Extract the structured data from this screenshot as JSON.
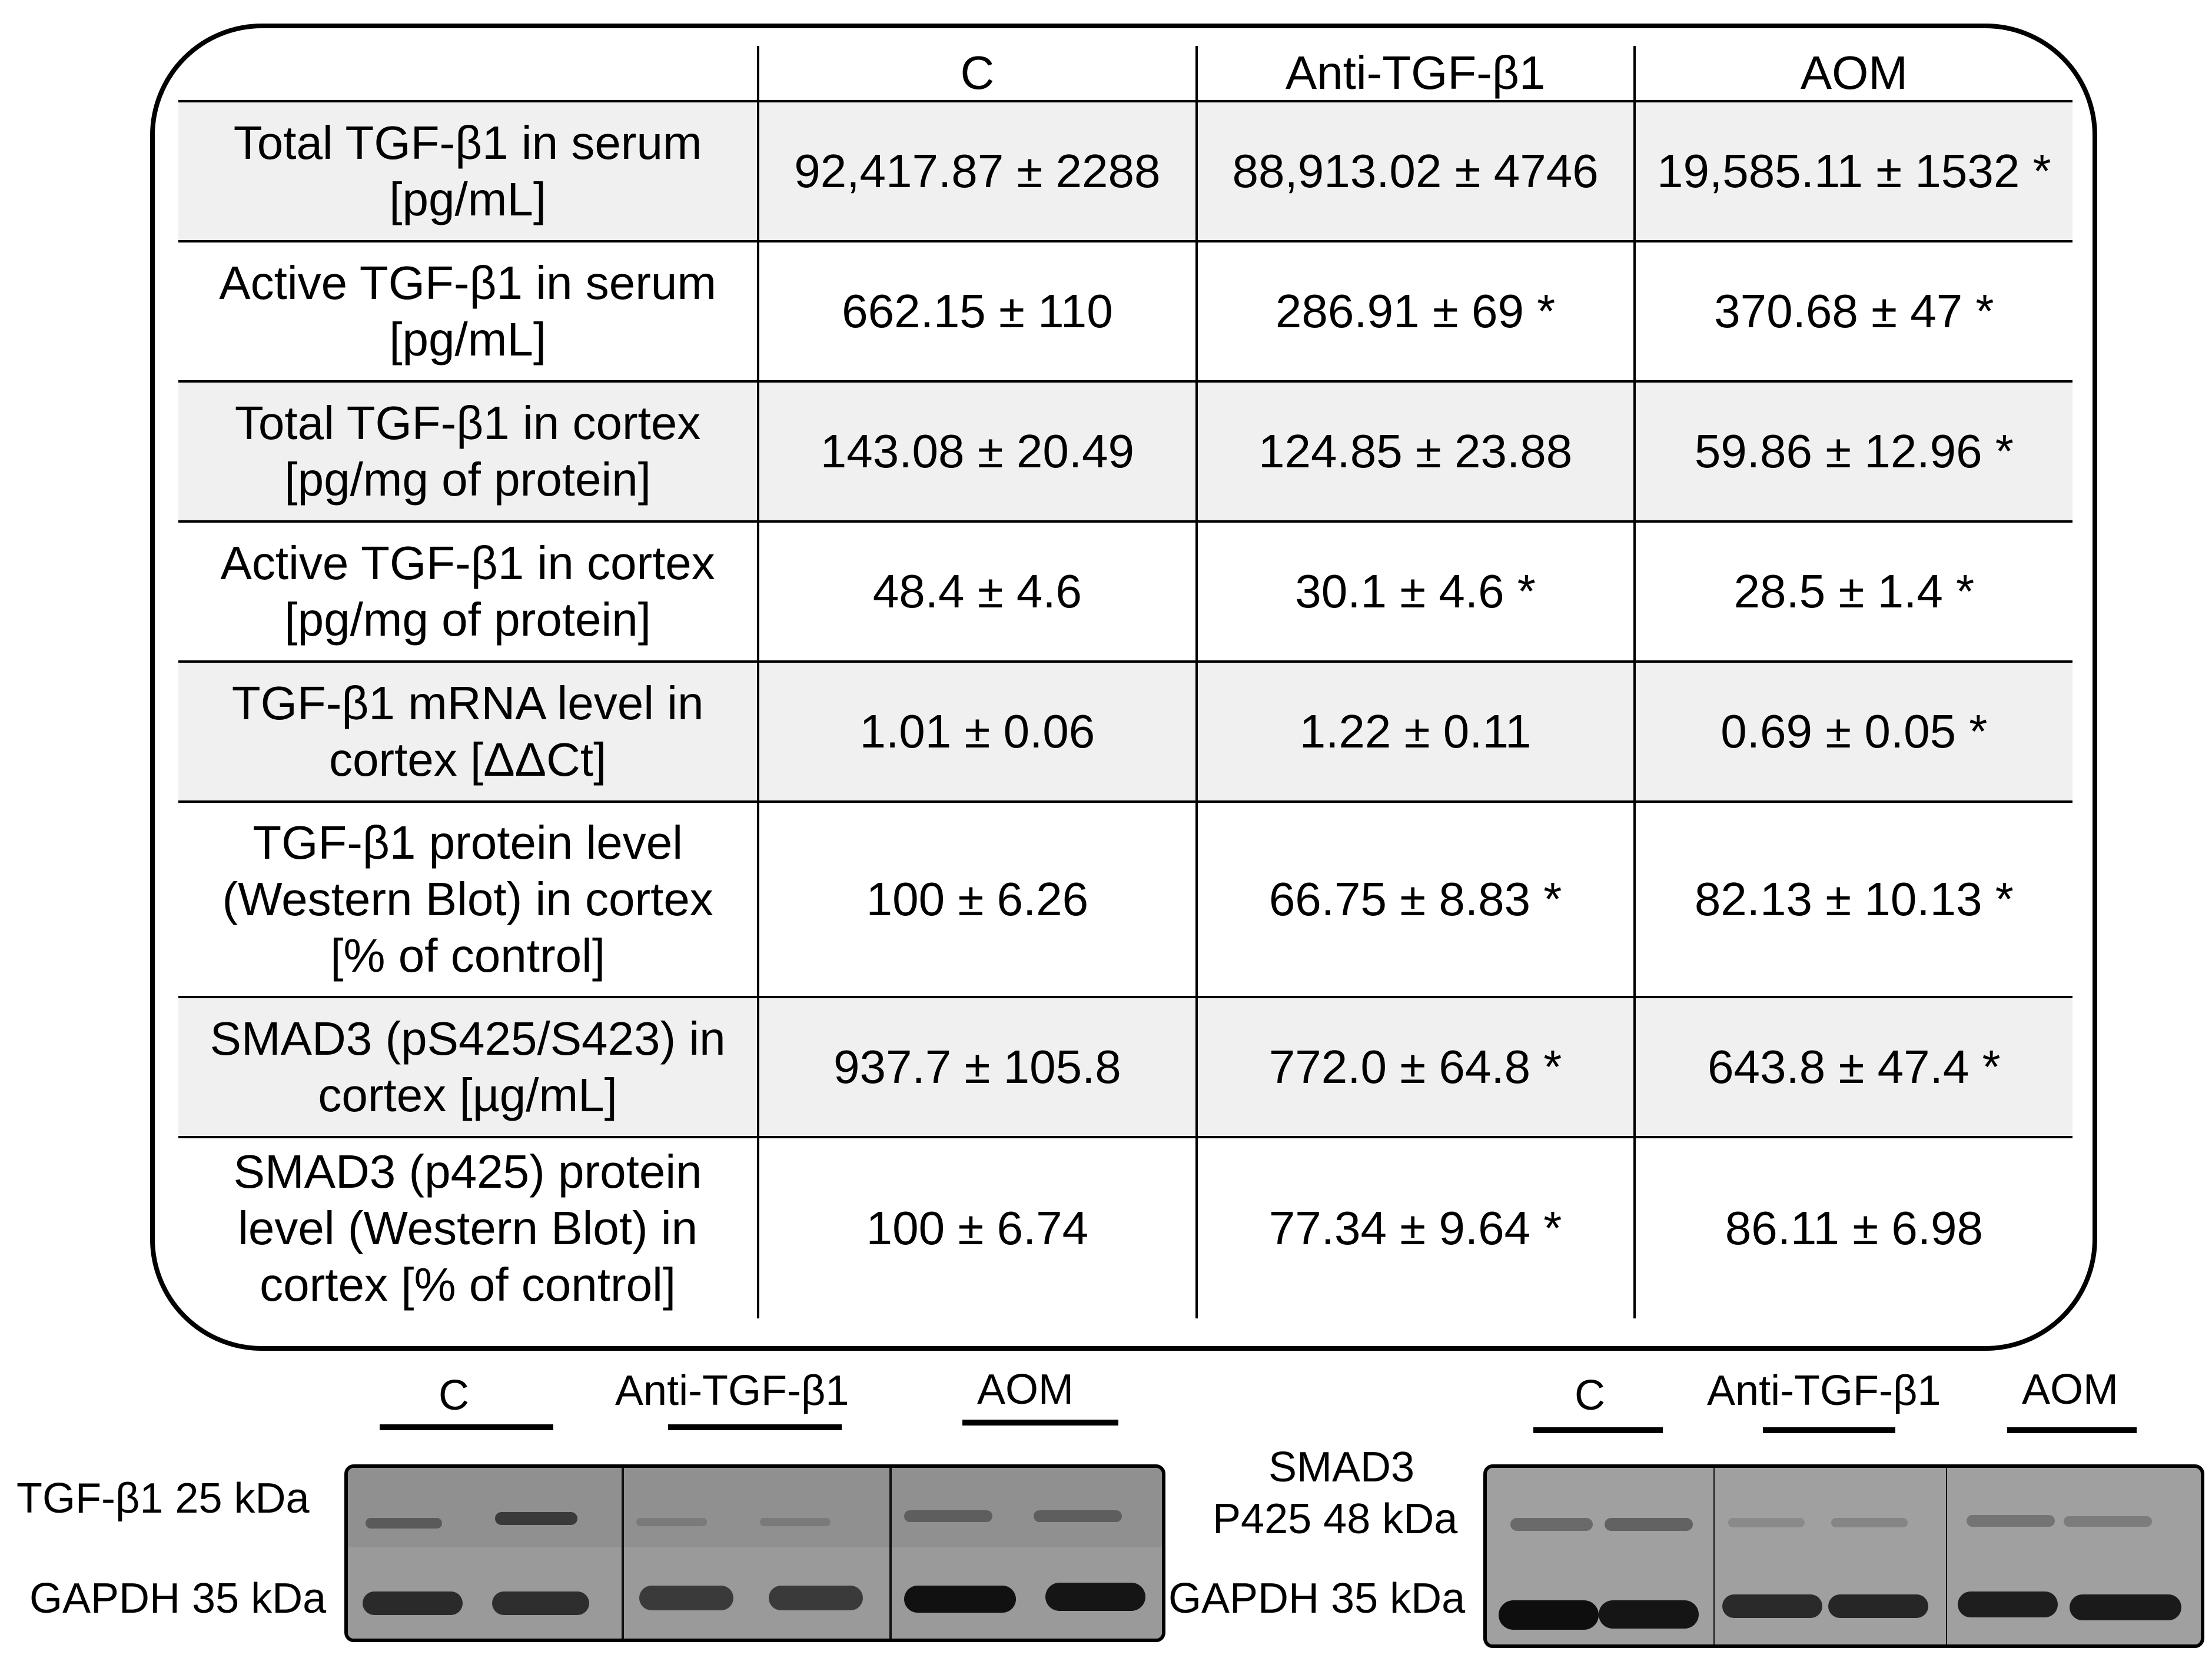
{
  "table": {
    "headers": [
      "",
      "C",
      "Anti-TGF-β1",
      "AOM"
    ],
    "rows": [
      {
        "label_lines": [
          "Total TGF-β1 in serum",
          "[pg/mL]"
        ],
        "values": [
          "92,417.87 ± 2288",
          "88,913.02 ± 4746",
          "19,585.11 ± 1532 *"
        ]
      },
      {
        "label_lines": [
          "Active TGF-β1 in serum",
          "[pg/mL]"
        ],
        "values": [
          "662.15 ± 110",
          "286.91 ± 69 *",
          "370.68 ± 47 *"
        ]
      },
      {
        "label_lines": [
          "Total TGF-β1 in cortex",
          "[pg/mg of protein]"
        ],
        "values": [
          "143.08 ± 20.49",
          "124.85 ± 23.88",
          "59.86 ± 12.96 *"
        ]
      },
      {
        "label_lines": [
          "Active TGF-β1 in cortex",
          "[pg/mg of protein]"
        ],
        "values": [
          "48.4 ± 4.6",
          "30.1 ± 4.6 *",
          "28.5 ± 1.4 *"
        ]
      },
      {
        "label_lines": [
          "TGF-β1 mRNA level in",
          "cortex [ΔΔCt]"
        ],
        "values": [
          "1.01 ± 0.06",
          "1.22 ± 0.11",
          "0.69 ± 0.05 *"
        ]
      },
      {
        "label_lines": [
          "TGF-β1 protein level",
          "(Western Blot) in cortex",
          "[% of control]"
        ],
        "values": [
          "100 ± 6.26",
          "66.75 ± 8.83 *",
          "82.13 ± 10.13 *"
        ]
      },
      {
        "label_lines": [
          "SMAD3 (pS425/S423) in",
          "cortex [µg/mL]"
        ],
        "values": [
          "937.7 ± 105.8",
          "772.0 ± 64.8 *",
          "643.8 ± 47.4 *"
        ]
      },
      {
        "label_lines": [
          "SMAD3 (p425) protein",
          "level (Western Blot) in",
          "cortex [% of control]"
        ],
        "values": [
          "100 ± 6.74",
          "77.34 ± 9.64 *",
          "86.11 ± 6.98"
        ]
      }
    ]
  },
  "blot_left": {
    "groups": [
      "C",
      "Anti-TGF-β1",
      "AOM"
    ],
    "row_labels": [
      "TGF-β1 25 kDa",
      "GAPDH 35 kDa"
    ]
  },
  "blot_right": {
    "groups": [
      "C",
      "Anti-TGF-β1",
      "AOM"
    ],
    "row_labels": [
      "SMAD3",
      "P425 48 kDa",
      "GAPDH 35 kDa"
    ]
  }
}
